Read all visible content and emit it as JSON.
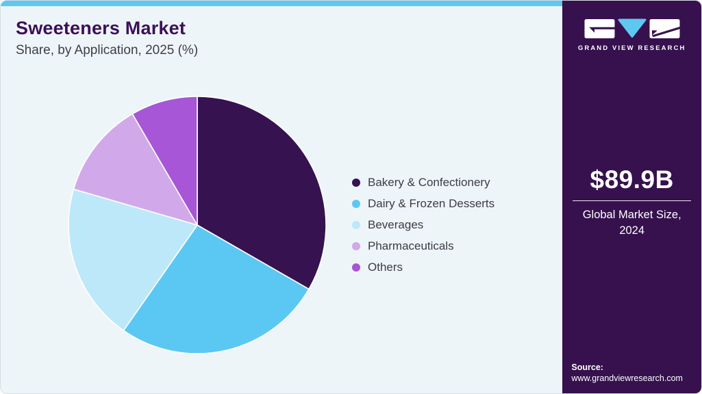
{
  "header": {
    "title": "Sweeteners Market",
    "subtitle": "Share, by Application, 2025 (%)"
  },
  "chart_data": {
    "type": "pie",
    "title": "Sweeteners Market Share, by Application, 2025 (%)",
    "unit": "%",
    "direction": "clockwise",
    "start_angle_deg": 0,
    "legend_position": "right",
    "slices": [
      {
        "label": "Bakery & Confectionery",
        "value": 33.3,
        "color": "#361251"
      },
      {
        "label": "Dairy & Frozen Desserts",
        "value": 26.4,
        "color": "#5bc8f4"
      },
      {
        "label": "Beverages",
        "value": 19.8,
        "color": "#bde8f9"
      },
      {
        "label": "Pharmaceuticals",
        "value": 12.1,
        "color": "#d1a9ea"
      },
      {
        "label": "Others",
        "value": 8.4,
        "color": "#a656d7"
      }
    ]
  },
  "sidebar": {
    "logo": {
      "brand": "GRAND VIEW RESEARCH"
    },
    "market_size": {
      "value": "$89.9B",
      "caption": "Global Market Size, 2024"
    },
    "source": {
      "label": "Source:",
      "url": "www.grandviewresearch.com"
    }
  },
  "colors": {
    "accent_bar": "#5fc8f0",
    "sidebar_bg": "#36114e",
    "panel_bg": "#eef5f9",
    "title_text": "#3c1058",
    "body_text": "#3b3b43",
    "slice_separator": "#ffffff"
  }
}
